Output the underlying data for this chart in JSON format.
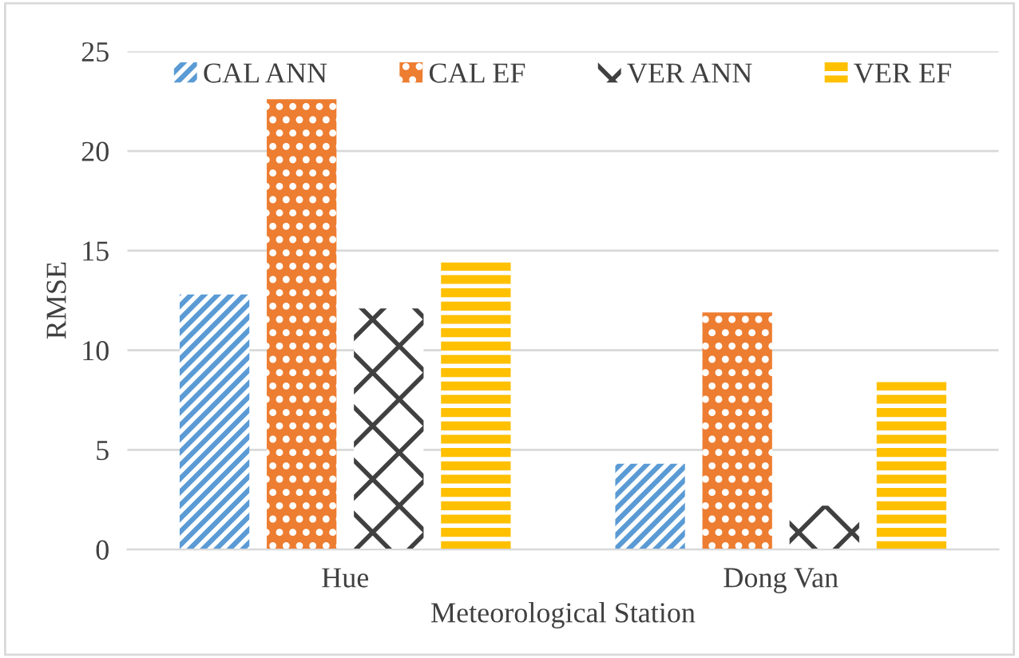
{
  "chart_data": {
    "type": "bar",
    "xlabel": "Meteorological Station",
    "ylabel": "RMSE",
    "categories": [
      "Hue",
      "Dong Van"
    ],
    "series": [
      {
        "name": "CAL ANN",
        "color": "#5b9bd5",
        "values": [
          12.8,
          4.3
        ]
      },
      {
        "name": "CAL EF",
        "color": "#ed7d31",
        "values": [
          22.6,
          11.9
        ]
      },
      {
        "name": "VER ANN",
        "color": "#404040",
        "values": [
          12.1,
          2.2
        ]
      },
      {
        "name": "VER EF",
        "color": "#ffc000",
        "values": [
          14.4,
          8.4
        ]
      }
    ],
    "ylim": [
      0,
      25
    ],
    "yticks": [
      0,
      5,
      10,
      15,
      20,
      25
    ],
    "grid": "y",
    "legend": "top"
  }
}
